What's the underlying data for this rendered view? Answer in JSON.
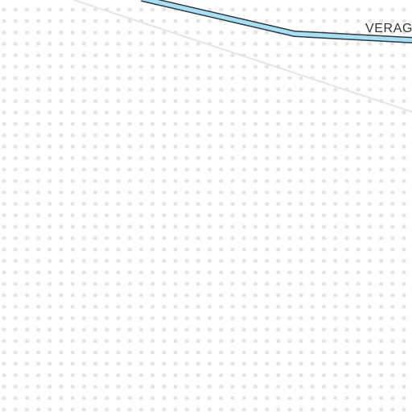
{
  "map": {
    "road_label": "VERAG",
    "colors": {
      "background": "#ffffff",
      "dot_pattern": "#e6e4de",
      "road_casing": "#2b3a46",
      "road_fill": "#a9dff0",
      "minor_road": "#e4e4e4",
      "label_text": "#333333"
    }
  }
}
